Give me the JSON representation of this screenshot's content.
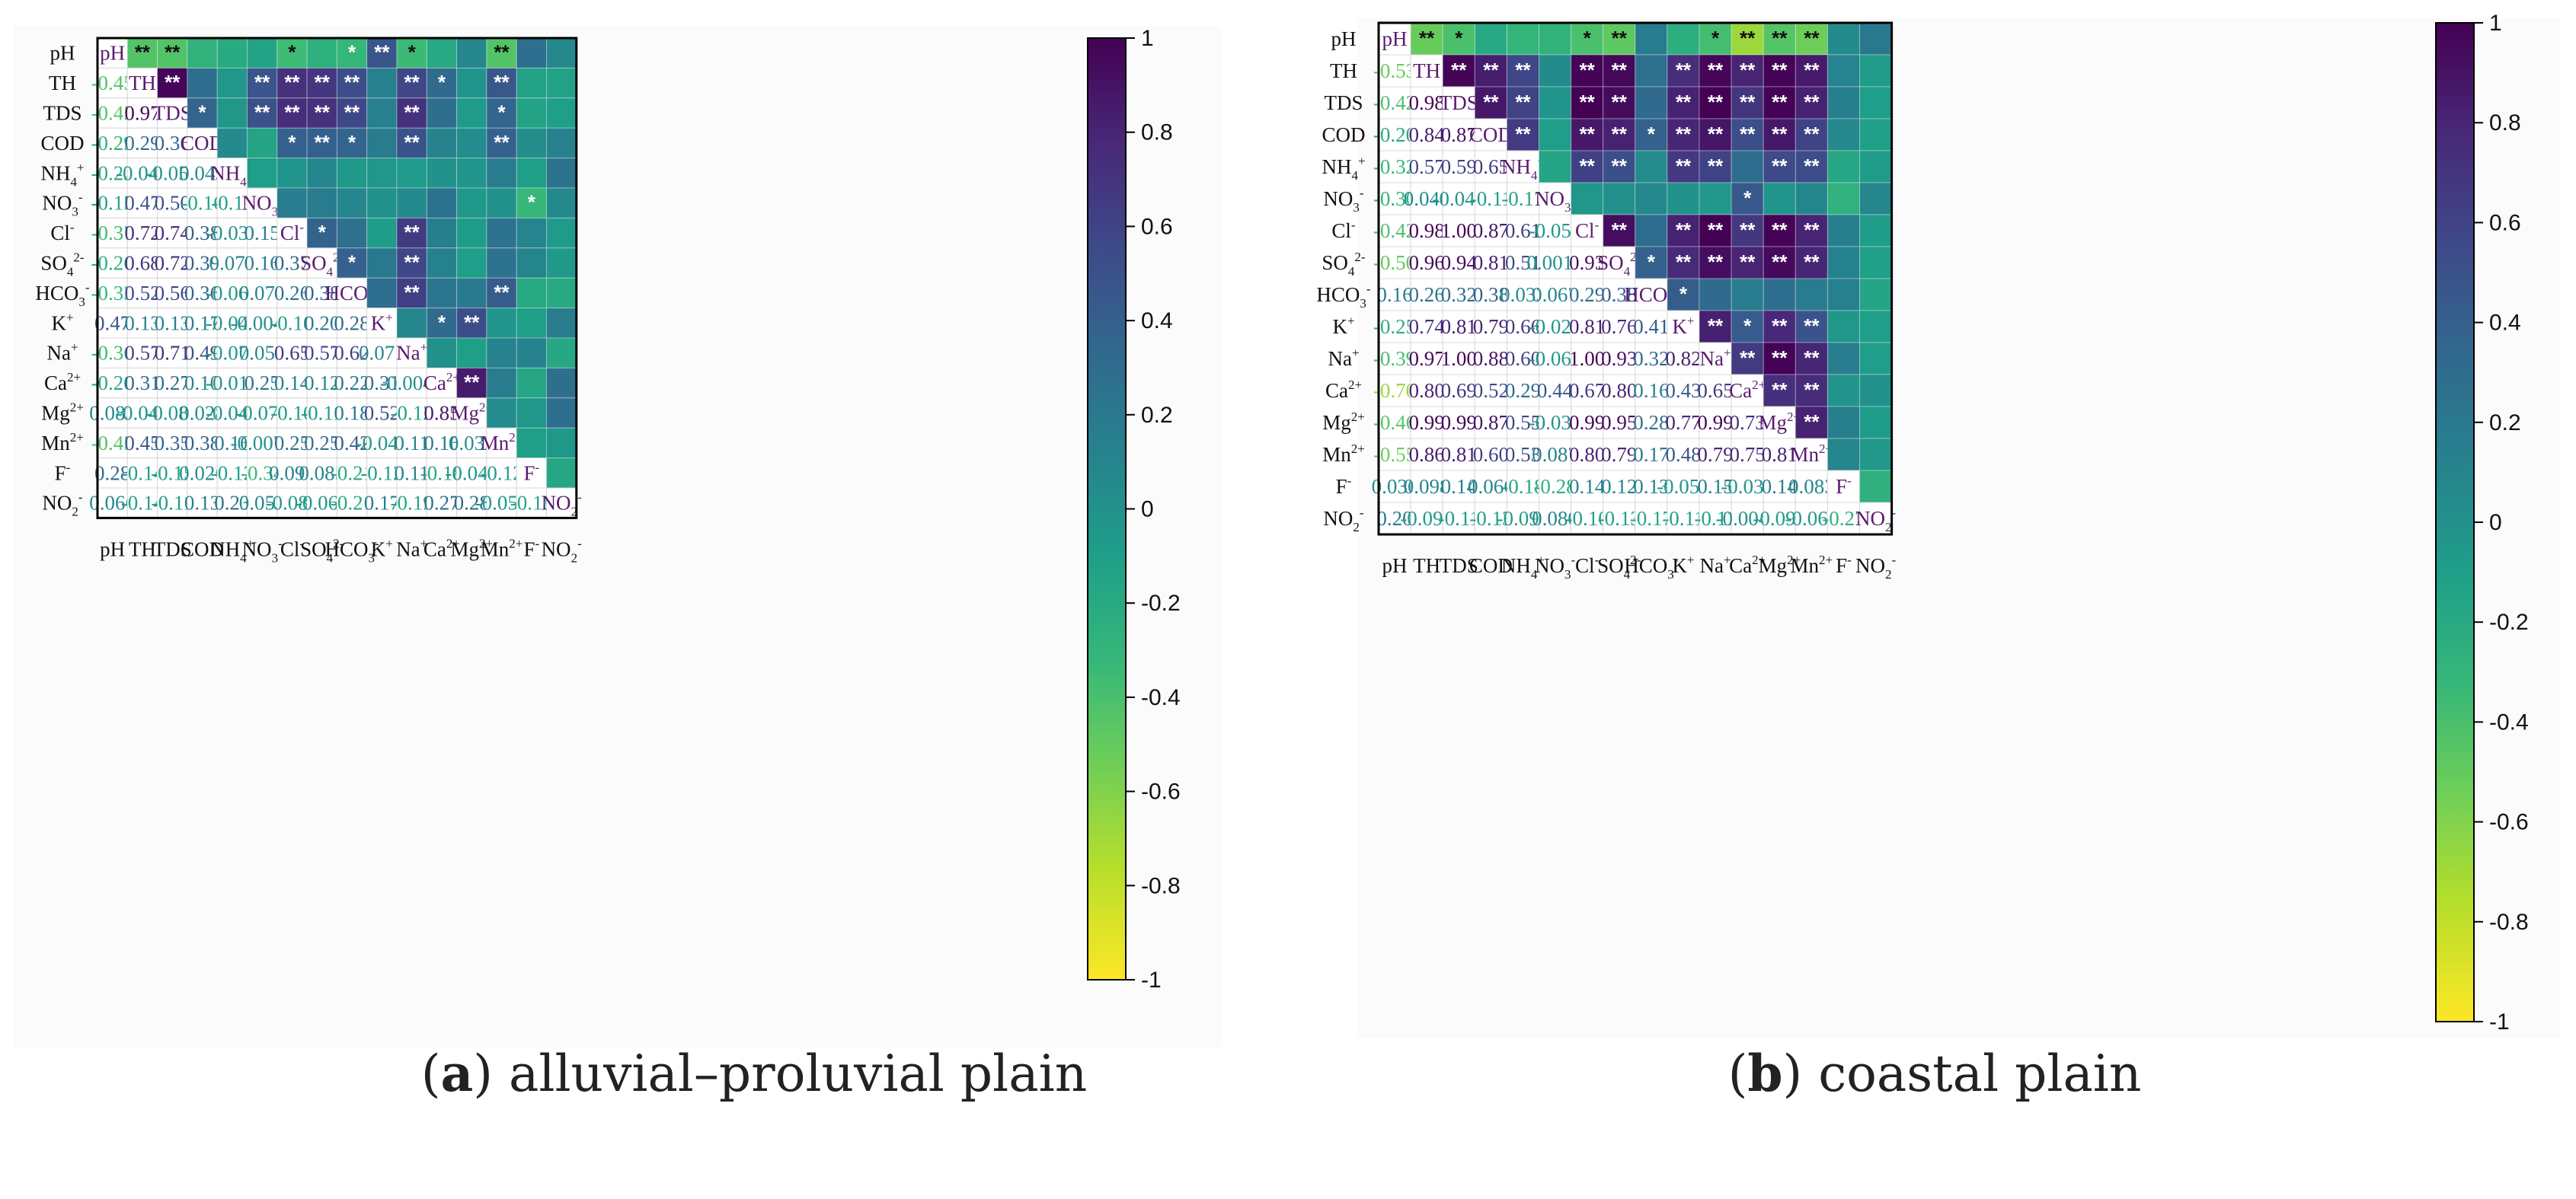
{
  "captions": [
    {
      "tag": "a",
      "text": " alluvial–proluvial plain"
    },
    {
      "tag": "b",
      "text": " coastal plain"
    }
  ],
  "colors": {
    "viridis": [
      "#fde725",
      "#b5de2b",
      "#6ece58",
      "#35b779",
      "#1f9e89",
      "#26828e",
      "#31688e",
      "#3e4989",
      "#482878",
      "#440154"
    ]
  },
  "chart_data": [
    {
      "type": "heatmap",
      "title": "(a) alluvial–proluvial plain",
      "variables": [
        {
          "base": "pH",
          "sub": "",
          "sup": ""
        },
        {
          "base": "TH",
          "sub": "",
          "sup": ""
        },
        {
          "base": "TDS",
          "sub": "",
          "sup": ""
        },
        {
          "base": "COD",
          "sub": "",
          "sup": ""
        },
        {
          "base": "NH",
          "sub": "4",
          "sup": "+"
        },
        {
          "base": "NO",
          "sub": "3",
          "sup": "-"
        },
        {
          "base": "Cl",
          "sub": "",
          "sup": "-"
        },
        {
          "base": "SO",
          "sub": "4",
          "sup": "2-"
        },
        {
          "base": "HCO",
          "sub": "3",
          "sup": "-"
        },
        {
          "base": "K",
          "sub": "",
          "sup": "+"
        },
        {
          "base": "Na",
          "sub": "",
          "sup": "+"
        },
        {
          "base": "Ca",
          "sub": "",
          "sup": "2+"
        },
        {
          "base": "Mg",
          "sub": "",
          "sup": "2+"
        },
        {
          "base": "Mn",
          "sub": "",
          "sup": "2+"
        },
        {
          "base": "F",
          "sub": "",
          "sup": "-"
        },
        {
          "base": "NO",
          "sub": "2",
          "sup": "-"
        }
      ],
      "lower": [
        [],
        [
          "-0.45"
        ],
        [
          "-0.45",
          "0.97"
        ],
        [
          "-0.29",
          "0.29",
          "0.36"
        ],
        [
          "-0.22",
          "-0.049",
          "-0.055",
          "0.049"
        ],
        [
          "-0.15",
          "0.47",
          "0.50",
          "-0.16",
          "-0.11"
        ],
        [
          "-0.37",
          "0.72",
          "0.74",
          "0.38",
          "-0.039",
          "0.15"
        ],
        [
          "-0.26",
          "0.68",
          "0.72",
          "0.39",
          "0.077",
          "0.16",
          "0.37"
        ],
        [
          "-0.33",
          "0.52",
          "0.56",
          "0.36",
          "-0.069",
          "0.071",
          "0.26",
          "0.38"
        ],
        [
          "0.47",
          "0.13",
          "0.13",
          "0.17",
          "-0.049",
          "-0.0044",
          "-0.10",
          "0.20",
          "0.28"
        ],
        [
          "-0.36",
          "0.57",
          "0.71",
          "0.49",
          "-0.079",
          "0.053",
          "0.65",
          "0.57",
          "0.62",
          "0.071"
        ],
        [
          "-0.20",
          "0.31",
          "0.27",
          "0.10",
          "-0.015",
          "0.25",
          "0.14",
          "0.12",
          "0.22",
          "0.31",
          "-0.0049"
        ],
        [
          "0.083",
          "-0.041",
          "-0.081",
          "0.028",
          "-0.041",
          "-0.073",
          "-0.10",
          "-0.11",
          "0.18",
          "0.52",
          "-0.12",
          "0.85"
        ],
        [
          "-0.45",
          "0.45",
          "0.35",
          "0.38",
          "0.16",
          "-0.0074",
          "0.25",
          "0.25",
          "0.42",
          "-0.042",
          "0.11",
          "0.16",
          "0.032"
        ],
        [
          "0.28",
          "-0.14",
          "-0.15",
          "0.026",
          "-0.12",
          "-0.34",
          "0.097",
          "0.085",
          "-0.21",
          "-0.12",
          "0.11",
          "-0.18",
          "-0.044",
          "-0.12"
        ],
        [
          "0.066",
          "-0.14",
          "-0.11",
          "0.13",
          "0.23",
          "0.053",
          "-0.082",
          "-0.068",
          "-0.21",
          "0.17",
          "-0.19",
          "0.27",
          "0.28",
          "-0.059",
          "-0.18"
        ]
      ],
      "upper_sig": [
        [
          "",
          "**",
          "**",
          "",
          "",
          "",
          "*",
          "",
          "*",
          "**",
          "*",
          "",
          "",
          "**",
          "",
          ""
        ],
        [
          "",
          "",
          "**",
          "",
          "",
          "**",
          "**",
          "**",
          "**",
          "",
          "**",
          "*",
          "",
          "**",
          "",
          ""
        ],
        [
          "",
          "",
          "",
          "*",
          "",
          "**",
          "**",
          "**",
          "**",
          "",
          "**",
          "",
          "",
          "*",
          "",
          ""
        ],
        [
          "",
          "",
          "",
          "",
          "",
          "",
          "*",
          "**",
          "*",
          "",
          "**",
          "",
          "",
          "**",
          "",
          ""
        ],
        [
          "",
          "",
          "",
          "",
          "",
          "",
          "",
          "",
          "",
          "",
          "",
          "",
          "",
          "",
          "",
          ""
        ],
        [
          "",
          "",
          "",
          "",
          "",
          "",
          "",
          "",
          "",
          "",
          "",
          "",
          "",
          "",
          "*",
          ""
        ],
        [
          "",
          "",
          "",
          "",
          "",
          "",
          "",
          "*",
          "",
          "",
          "**",
          "",
          "",
          "",
          "",
          ""
        ],
        [
          "",
          "",
          "",
          "",
          "",
          "",
          "",
          "",
          "*",
          "",
          "**",
          "",
          "",
          "",
          "",
          ""
        ],
        [
          "",
          "",
          "",
          "",
          "",
          "",
          "",
          "",
          "",
          "",
          "**",
          "",
          "",
          "**",
          "",
          ""
        ],
        [
          "",
          "",
          "",
          "",
          "",
          "",
          "",
          "",
          "",
          "",
          "",
          "*",
          "**",
          "",
          "",
          ""
        ],
        [
          "",
          "",
          "",
          "",
          "",
          "",
          "",
          "",
          "",
          "",
          "",
          "",
          "",
          "",
          "",
          ""
        ],
        [
          "",
          "",
          "",
          "",
          "",
          "",
          "",
          "",
          "",
          "",
          "",
          "",
          "**",
          "",
          "",
          ""
        ],
        [
          "",
          "",
          "",
          "",
          "",
          "",
          "",
          "",
          "",
          "",
          "",
          "",
          "",
          "",
          "",
          ""
        ],
        [
          "",
          "",
          "",
          "",
          "",
          "",
          "",
          "",
          "",
          "",
          "",
          "",
          "",
          "",
          "",
          ""
        ],
        [
          "",
          "",
          "",
          "",
          "",
          "",
          "",
          "",
          "",
          "",
          "",
          "",
          "",
          "",
          "",
          ""
        ],
        [
          "",
          "",
          "",
          "",
          "",
          "",
          "",
          "",
          "",
          "",
          "",
          "",
          "",
          "",
          "",
          ""
        ]
      ],
      "colorbar": {
        "min": -1,
        "max": 1,
        "ticks": [
          "1",
          "0.8",
          "0.6",
          "0.4",
          "0.2",
          "0",
          "-0.2",
          "-0.4",
          "-0.6",
          "-0.8",
          "-1"
        ]
      }
    },
    {
      "type": "heatmap",
      "title": "(b) coastal plain",
      "variables": [
        {
          "base": "pH",
          "sub": "",
          "sup": ""
        },
        {
          "base": "TH",
          "sub": "",
          "sup": ""
        },
        {
          "base": "TDS",
          "sub": "",
          "sup": ""
        },
        {
          "base": "COD",
          "sub": "",
          "sup": ""
        },
        {
          "base": "NH",
          "sub": "4",
          "sup": "+"
        },
        {
          "base": "NO",
          "sub": "3",
          "sup": "-"
        },
        {
          "base": "Cl",
          "sub": "",
          "sup": "-"
        },
        {
          "base": "SO",
          "sub": "4",
          "sup": "2-"
        },
        {
          "base": "HCO",
          "sub": "3",
          "sup": "-"
        },
        {
          "base": "K",
          "sub": "",
          "sup": "+"
        },
        {
          "base": "Na",
          "sub": "",
          "sup": "+"
        },
        {
          "base": "Ca",
          "sub": "",
          "sup": "2+"
        },
        {
          "base": "Mg",
          "sub": "",
          "sup": "2+"
        },
        {
          "base": "Mn",
          "sub": "",
          "sup": "2+"
        },
        {
          "base": "F",
          "sub": "",
          "sup": "-"
        },
        {
          "base": "NO",
          "sub": "2",
          "sup": "-"
        }
      ],
      "lower": [
        [],
        [
          "-0.53"
        ],
        [
          "-0.42",
          "0.98"
        ],
        [
          "-0.20",
          "0.84",
          "0.87"
        ],
        [
          "-0.32",
          "0.57",
          "0.59",
          "0.65"
        ],
        [
          "-0.30",
          "0.040",
          "-0.042",
          "-0.11",
          "-0.17"
        ],
        [
          "-0.42",
          "0.98",
          "1.00",
          "0.87",
          "0.61",
          "-0.054"
        ],
        [
          "-0.50",
          "0.96",
          "0.94",
          "0.81",
          "0.51",
          "0.0017",
          "0.93"
        ],
        [
          "0.16",
          "0.26",
          "0.32",
          "0.38",
          "0.033",
          "0.067",
          "0.29",
          "0.38"
        ],
        [
          "-0.25",
          "0.74",
          "0.81",
          "0.79",
          "0.66",
          "-0.021",
          "0.81",
          "0.76",
          "0.41"
        ],
        [
          "-0.39",
          "0.97",
          "1.00",
          "0.88",
          "0.60",
          "-0.061",
          "1.00",
          "0.93",
          "0.32",
          "0.82"
        ],
        [
          "-0.70",
          "0.80",
          "0.69",
          "0.52",
          "0.29",
          "0.44",
          "0.67",
          "0.80",
          "0.16",
          "0.43",
          "0.65"
        ],
        [
          "-0.46",
          "0.99",
          "0.99",
          "0.87",
          "0.55",
          "-0.032",
          "0.99",
          "0.95",
          "0.28",
          "0.77",
          "0.99",
          "0.73"
        ],
        [
          "-0.55",
          "0.86",
          "0.81",
          "0.60",
          "0.53",
          "0.087",
          "0.80",
          "0.79",
          "0.17",
          "0.48",
          "0.79",
          "0.75",
          "0.81"
        ],
        [
          "0.036",
          "0.098",
          "0.14",
          "0.066",
          "-0.18",
          "-0.28",
          "0.14",
          "0.12",
          "0.13",
          "-0.058",
          "0.15",
          "-0.030",
          "0.14",
          "0.083"
        ],
        [
          "0.20",
          "-0.090",
          "-0.11",
          "-0.13",
          "-0.091",
          "0.080",
          "-0.10",
          "-0.13",
          "-0.17",
          "-0.11",
          "-0.11",
          "-0.0041",
          "-0.096",
          "-0.060",
          "-0.27"
        ]
      ],
      "upper_sig": [
        [
          "",
          "**",
          "*",
          "",
          "",
          "",
          "*",
          "**",
          "",
          "",
          "*",
          "**",
          "**",
          "**",
          "",
          ""
        ],
        [
          "",
          "",
          "**",
          "**",
          "**",
          "",
          "**",
          "**",
          "",
          "**",
          "**",
          "**",
          "**",
          "**",
          "",
          ""
        ],
        [
          "",
          "",
          "",
          "**",
          "**",
          "",
          "**",
          "**",
          "",
          "**",
          "**",
          "**",
          "**",
          "**",
          "",
          ""
        ],
        [
          "",
          "",
          "",
          "",
          "**",
          "",
          "**",
          "**",
          "*",
          "**",
          "**",
          "**",
          "**",
          "**",
          "",
          ""
        ],
        [
          "",
          "",
          "",
          "",
          "",
          "",
          "**",
          "**",
          "",
          "**",
          "**",
          "",
          "**",
          "**",
          "",
          ""
        ],
        [
          "",
          "",
          "",
          "",
          "",
          "",
          "",
          "",
          "",
          "",
          "",
          "*",
          "",
          "",
          "",
          ""
        ],
        [
          "",
          "",
          "",
          "",
          "",
          "",
          "",
          "**",
          "",
          "**",
          "**",
          "**",
          "**",
          "**",
          "",
          ""
        ],
        [
          "",
          "",
          "",
          "",
          "",
          "",
          "",
          "",
          "*",
          "**",
          "**",
          "**",
          "**",
          "**",
          "",
          ""
        ],
        [
          "",
          "",
          "",
          "",
          "",
          "",
          "",
          "",
          "",
          "*",
          "",
          "",
          "",
          "",
          "",
          ""
        ],
        [
          "",
          "",
          "",
          "",
          "",
          "",
          "",
          "",
          "",
          "",
          "**",
          "*",
          "**",
          "**",
          "",
          ""
        ],
        [
          "",
          "",
          "",
          "",
          "",
          "",
          "",
          "",
          "",
          "",
          "",
          "**",
          "**",
          "**",
          "",
          ""
        ],
        [
          "",
          "",
          "",
          "",
          "",
          "",
          "",
          "",
          "",
          "",
          "",
          "",
          "**",
          "**",
          "",
          ""
        ],
        [
          "",
          "",
          "",
          "",
          "",
          "",
          "",
          "",
          "",
          "",
          "",
          "",
          "",
          "**",
          "",
          ""
        ],
        [
          "",
          "",
          "",
          "",
          "",
          "",
          "",
          "",
          "",
          "",
          "",
          "",
          "",
          "",
          "",
          ""
        ],
        [
          "",
          "",
          "",
          "",
          "",
          "",
          "",
          "",
          "",
          "",
          "",
          "",
          "",
          "",
          "",
          ""
        ],
        [
          "",
          "",
          "",
          "",
          "",
          "",
          "",
          "",
          "",
          "",
          "",
          "",
          "",
          "",
          "",
          ""
        ]
      ],
      "colorbar": {
        "min": -1,
        "max": 1,
        "ticks": [
          "1",
          "0.8",
          "0.6",
          "0.4",
          "0.2",
          "0",
          "-0.2",
          "-0.4",
          "-0.6",
          "-0.8",
          "-1"
        ]
      }
    }
  ]
}
